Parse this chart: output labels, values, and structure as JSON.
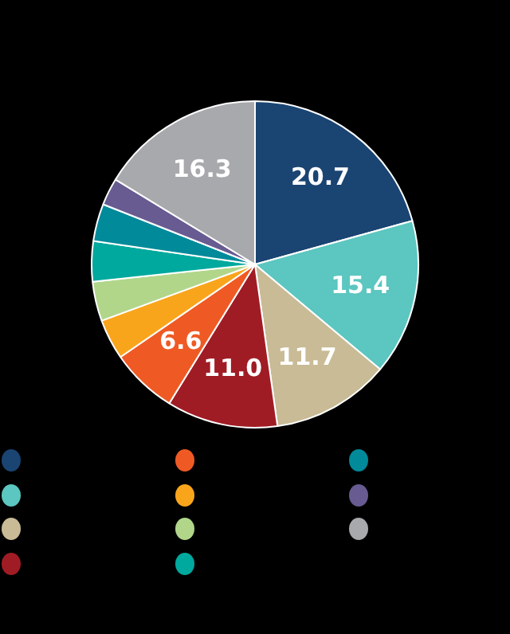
{
  "chart_data": {
    "type": "pie",
    "categories": [
      null,
      null,
      null,
      null,
      null,
      null,
      null,
      null,
      null,
      null,
      null
    ],
    "values": [
      20.7,
      15.4,
      11.7,
      11.0,
      6.6,
      4.0,
      3.9,
      4.0,
      3.7,
      2.7,
      16.3
    ],
    "colors": [
      "#1a4472",
      "#5cc6c0",
      "#c8bb96",
      "#a01c24",
      "#ef5a24",
      "#f9a51c",
      "#b1d68a",
      "#00a99d",
      "#008a9a",
      "#685b91",
      "#a7a9ac"
    ],
    "value_labels": [
      "20.7",
      "15.4",
      "11.7",
      "11.0",
      "6.6",
      null,
      null,
      null,
      null,
      null,
      "16.3"
    ]
  }
}
